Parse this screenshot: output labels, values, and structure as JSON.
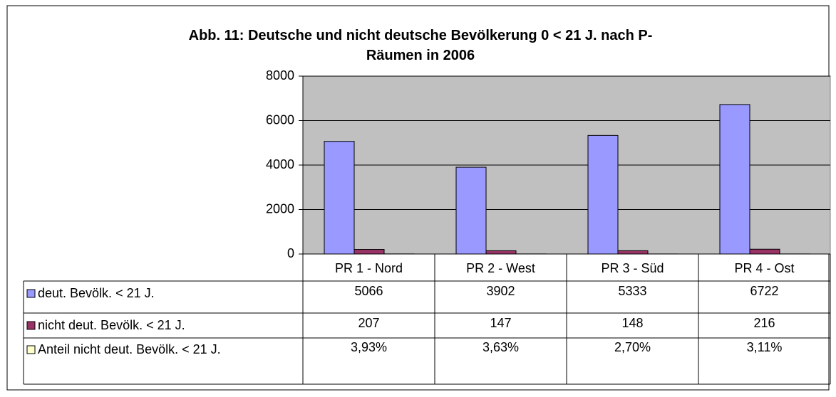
{
  "chart_data": {
    "type": "bar",
    "title": "Abb. 11: Deutsche und nicht deutsche Bevölkerung 0 < 21 J. nach P-Räumen in 2006",
    "categories": [
      "PR 1 - Nord",
      "PR 2 - West",
      "PR 3 - Süd",
      "PR 4 - Ost"
    ],
    "series": [
      {
        "name": "deut. Bevölk. < 21 J.",
        "color": "#9999ff",
        "values": [
          5066,
          3902,
          5333,
          6722
        ]
      },
      {
        "name": "nicht deut. Bevölk. < 21 J.",
        "color": "#993366",
        "values": [
          207,
          147,
          148,
          216
        ]
      },
      {
        "name": "Anteil nicht deut. Bevölk. < 21 J.",
        "color": "#ffffcc",
        "values": [
          3.93,
          3.63,
          2.7,
          3.11
        ],
        "value_labels": [
          "3,93%",
          "3,63%",
          "2,70%",
          "3,11%"
        ]
      }
    ],
    "ylim": [
      0,
      8000
    ],
    "yticks": [
      0,
      2000,
      4000,
      6000,
      8000
    ],
    "grid": true,
    "plot_background": "#c0c0c0"
  }
}
